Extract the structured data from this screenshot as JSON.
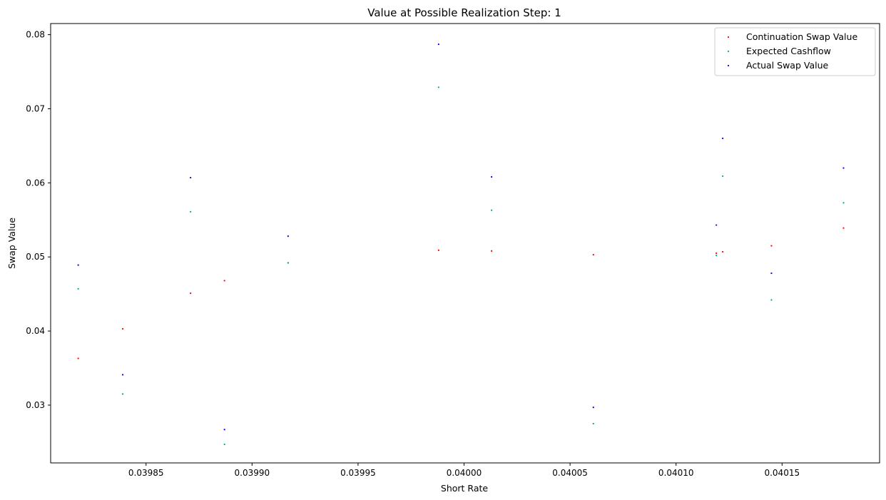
{
  "chart_data": {
    "type": "scatter",
    "title": "Value at Possible Realization Step: 1",
    "xlabel": "Short Rate",
    "ylabel": "Swap Value",
    "xlim": [
      0.039805,
      0.040196
    ],
    "ylim": [
      0.0222,
      0.0815
    ],
    "xticks": [
      "0.03985",
      "0.03990",
      "0.03995",
      "0.04000",
      "0.04005",
      "0.04010",
      "0.04015"
    ],
    "xtick_values": [
      0.03985,
      0.0399,
      0.03995,
      0.04,
      0.04005,
      0.0401,
      0.04015
    ],
    "yticks": [
      "0.03",
      "0.04",
      "0.05",
      "0.06",
      "0.07",
      "0.08"
    ],
    "ytick_values": [
      0.03,
      0.04,
      0.05,
      0.06,
      0.07,
      0.08
    ],
    "legend_position": "upper-right",
    "grid": false,
    "series": [
      {
        "name": "Continuation Swap Value",
        "color": "#ff0000",
        "points": [
          [
            0.039818,
            0.0363
          ],
          [
            0.039839,
            0.0403
          ],
          [
            0.039871,
            0.0451
          ],
          [
            0.039887,
            0.0468
          ],
          [
            0.039917,
            0.0492
          ],
          [
            0.039988,
            0.0509
          ],
          [
            0.040013,
            0.0508
          ],
          [
            0.040061,
            0.0503
          ],
          [
            0.040119,
            0.0505
          ],
          [
            0.040122,
            0.0507
          ],
          [
            0.040145,
            0.0515
          ],
          [
            0.040179,
            0.0539
          ]
        ]
      },
      {
        "name": "Expected Cashflow",
        "color": "#00aa88",
        "points": [
          [
            0.039818,
            0.0457
          ],
          [
            0.039839,
            0.0315
          ],
          [
            0.039871,
            0.0561
          ],
          [
            0.039887,
            0.0247
          ],
          [
            0.039917,
            0.0492
          ],
          [
            0.039988,
            0.0729
          ],
          [
            0.040013,
            0.0563
          ],
          [
            0.040061,
            0.0275
          ],
          [
            0.040119,
            0.0502
          ],
          [
            0.040122,
            0.0609
          ],
          [
            0.040145,
            0.0442
          ],
          [
            0.040179,
            0.0573
          ]
        ]
      },
      {
        "name": "Actual Swap Value",
        "color": "#0000ff",
        "points": [
          [
            0.039818,
            0.0489
          ],
          [
            0.039839,
            0.0341
          ],
          [
            0.039871,
            0.0607
          ],
          [
            0.039887,
            0.0267
          ],
          [
            0.039917,
            0.0528
          ],
          [
            0.039988,
            0.0787
          ],
          [
            0.040013,
            0.0608
          ],
          [
            0.040061,
            0.0297
          ],
          [
            0.040119,
            0.0543
          ],
          [
            0.040122,
            0.066
          ],
          [
            0.040145,
            0.0478
          ],
          [
            0.040179,
            0.062
          ]
        ]
      }
    ]
  }
}
